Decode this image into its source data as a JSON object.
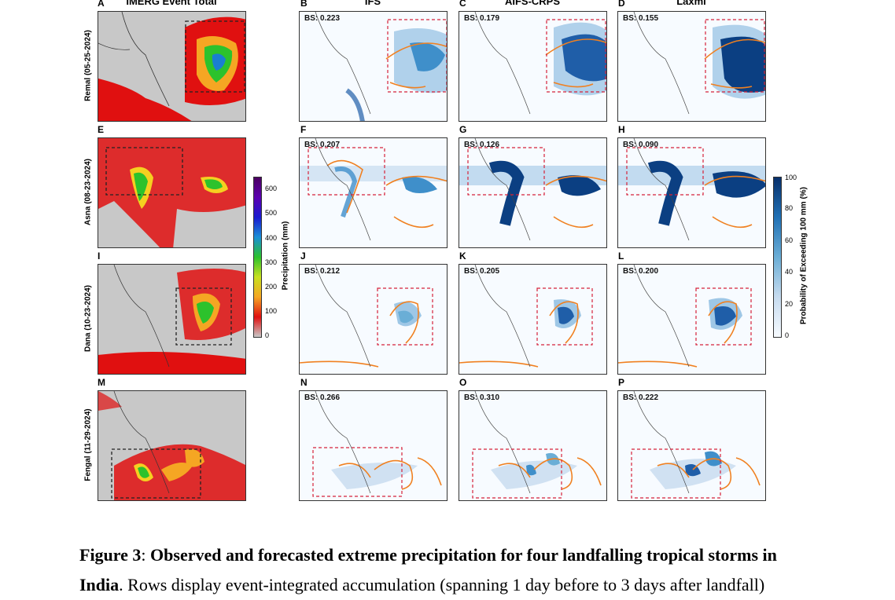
{
  "columns": [
    "IMERG Event Total",
    "IFS",
    "AIFS-CRPS",
    "Laxmi"
  ],
  "rows": [
    {
      "name": "Remal (05-25-2024)",
      "panels": [
        "A",
        "B",
        "C",
        "D"
      ],
      "bs": [
        "BS: 0.223",
        "BS: 0.179",
        "BS: 0.155"
      ]
    },
    {
      "name": "Asna (08-23-2024)",
      "panels": [
        "E",
        "F",
        "G",
        "H"
      ],
      "bs": [
        "BS: 0.207",
        "BS: 0.126",
        "BS: 0.090"
      ]
    },
    {
      "name": "Dana (10-23-2024)",
      "panels": [
        "I",
        "J",
        "K",
        "L"
      ],
      "bs": [
        "BS: 0.212",
        "BS: 0.205",
        "BS: 0.200"
      ]
    },
    {
      "name": "Fengal (11-29-2024)",
      "panels": [
        "M",
        "N",
        "O",
        "P"
      ],
      "bs": [
        "BS: 0.266",
        "BS: 0.310",
        "BS: 0.222"
      ]
    }
  ],
  "precip_colorbar": {
    "label": "Precipitation (mm)",
    "ticks": [
      "600",
      "500",
      "400",
      "300",
      "200",
      "100",
      "0"
    ]
  },
  "prob_colorbar": {
    "label": "Probability of Exceeding 100 mm (%)",
    "ticks": [
      "100",
      "80",
      "60",
      "40",
      "20",
      "0"
    ]
  },
  "caption": {
    "fig_label": "Figure 3",
    "separator": ": ",
    "title": "Observed and forecasted extreme precipitation for four landfalling tropical storms in India",
    "text": ". Rows display event-integrated accumulation (spanning 1 day before to 3 days after landfall)"
  }
}
